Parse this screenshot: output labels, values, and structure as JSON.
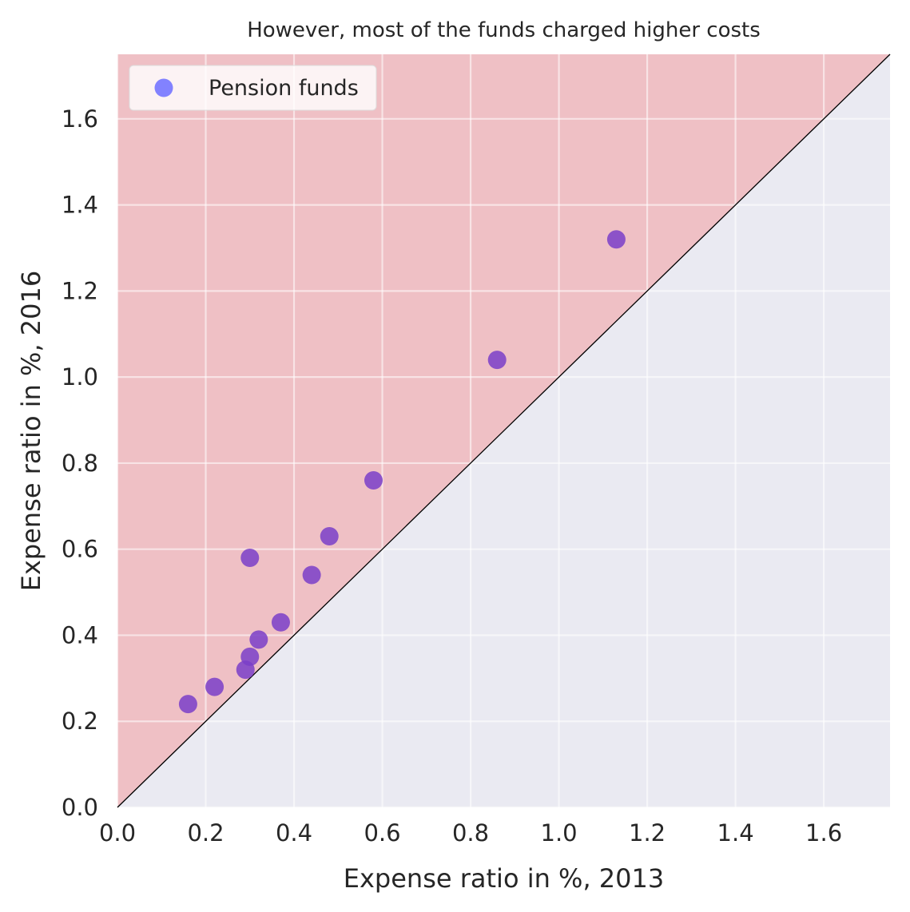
{
  "chart_data": {
    "type": "scatter",
    "title": "However, most of the funds charged higher costs",
    "xlabel": "Expense ratio in %, 2013",
    "ylabel": "Expense ratio in %, 2016",
    "xlim": [
      0.0,
      1.75
    ],
    "ylim": [
      0.0,
      1.75
    ],
    "xticks": [
      "0.0",
      "0.2",
      "0.4",
      "0.6",
      "0.8",
      "1.0",
      "1.2",
      "1.4",
      "1.6"
    ],
    "yticks": [
      "0.0",
      "0.2",
      "0.4",
      "0.6",
      "0.8",
      "1.0",
      "1.2",
      "1.4",
      "1.6"
    ],
    "grid": true,
    "legend_position": "top-left",
    "reference_line": "y = x",
    "shaded_region": "above diagonal",
    "series": [
      {
        "name": "Pension funds",
        "color": "#7a3ec8",
        "points": [
          {
            "x": 0.16,
            "y": 0.24
          },
          {
            "x": 0.22,
            "y": 0.28
          },
          {
            "x": 0.29,
            "y": 0.32
          },
          {
            "x": 0.3,
            "y": 0.35
          },
          {
            "x": 0.32,
            "y": 0.39
          },
          {
            "x": 0.37,
            "y": 0.43
          },
          {
            "x": 0.3,
            "y": 0.58
          },
          {
            "x": 0.44,
            "y": 0.54
          },
          {
            "x": 0.48,
            "y": 0.63
          },
          {
            "x": 0.58,
            "y": 0.76
          },
          {
            "x": 0.86,
            "y": 1.04
          },
          {
            "x": 1.13,
            "y": 1.32
          }
        ]
      }
    ],
    "colors": {
      "background": "#eaeaf2",
      "shade": "#f0b8bd",
      "grid": "#ffffff",
      "diagonal": "#000000",
      "legend_marker": "#7b7bff"
    }
  }
}
